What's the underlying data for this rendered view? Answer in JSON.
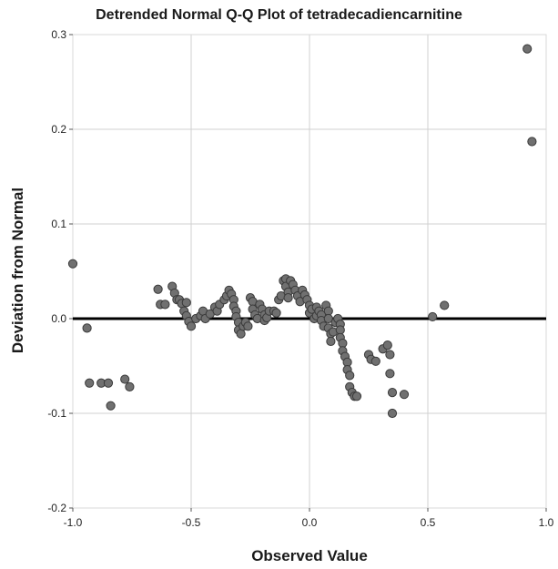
{
  "chart_data": {
    "type": "scatter",
    "title": "Detrended Normal Q-Q Plot of tetradecadiencarnitine",
    "xlabel": "Observed Value",
    "ylabel": "Deviation from Normal",
    "xlim": [
      -1.0,
      1.0
    ],
    "ylim": [
      -0.2,
      0.3
    ],
    "xticks": [
      -1.0,
      -0.5,
      0.0,
      0.5,
      1.0
    ],
    "xtick_labels": [
      "-1.0",
      "-0.5",
      "0.0",
      "0.5",
      "1.0"
    ],
    "yticks": [
      -0.2,
      -0.1,
      0.0,
      0.1,
      0.2,
      0.3
    ],
    "ytick_labels": [
      "-0.2",
      "-0.1",
      "0.0",
      "0.1",
      "0.2",
      "0.3"
    ],
    "grid": true,
    "reference_line": 0.0,
    "colors": {
      "point_fill": "#707070",
      "point_stroke": "#3a3a3a",
      "grid": "#d0d0d0",
      "reference": "#000000"
    },
    "points": [
      [
        -1.0,
        0.058
      ],
      [
        -0.94,
        -0.01
      ],
      [
        -0.93,
        -0.068
      ],
      [
        -0.88,
        -0.068
      ],
      [
        -0.85,
        -0.068
      ],
      [
        -0.84,
        -0.092
      ],
      [
        -0.78,
        -0.064
      ],
      [
        -0.76,
        -0.072
      ],
      [
        -0.64,
        0.031
      ],
      [
        -0.63,
        0.015
      ],
      [
        -0.61,
        0.015
      ],
      [
        -0.58,
        0.034
      ],
      [
        -0.57,
        0.027
      ],
      [
        -0.56,
        0.02
      ],
      [
        -0.55,
        0.02
      ],
      [
        -0.54,
        0.016
      ],
      [
        -0.53,
        0.008
      ],
      [
        -0.52,
        0.017
      ],
      [
        -0.52,
        0.003
      ],
      [
        -0.51,
        -0.003
      ],
      [
        -0.5,
        -0.008
      ],
      [
        -0.48,
        0.0
      ],
      [
        -0.46,
        0.003
      ],
      [
        -0.45,
        0.008
      ],
      [
        -0.44,
        0.0
      ],
      [
        -0.42,
        0.005
      ],
      [
        -0.4,
        0.012
      ],
      [
        -0.39,
        0.008
      ],
      [
        -0.38,
        0.015
      ],
      [
        -0.36,
        0.02
      ],
      [
        -0.35,
        0.024
      ],
      [
        -0.34,
        0.03
      ],
      [
        -0.33,
        0.026
      ],
      [
        -0.32,
        0.02
      ],
      [
        -0.32,
        0.013
      ],
      [
        -0.31,
        0.008
      ],
      [
        -0.31,
        0.002
      ],
      [
        -0.3,
        -0.004
      ],
      [
        -0.3,
        -0.012
      ],
      [
        -0.29,
        -0.016
      ],
      [
        -0.28,
        -0.008
      ],
      [
        -0.27,
        -0.004
      ],
      [
        -0.26,
        -0.008
      ],
      [
        -0.25,
        0.022
      ],
      [
        -0.24,
        0.018
      ],
      [
        -0.24,
        0.01
      ],
      [
        -0.23,
        0.004
      ],
      [
        -0.22,
        0.0
      ],
      [
        -0.21,
        0.015
      ],
      [
        -0.2,
        0.01
      ],
      [
        -0.19,
        0.004
      ],
      [
        -0.19,
        -0.002
      ],
      [
        -0.18,
        0.001
      ],
      [
        -0.17,
        0.008
      ],
      [
        -0.15,
        0.008
      ],
      [
        -0.14,
        0.006
      ],
      [
        -0.13,
        0.02
      ],
      [
        -0.12,
        0.024
      ],
      [
        -0.11,
        0.04
      ],
      [
        -0.1,
        0.042
      ],
      [
        -0.1,
        0.034
      ],
      [
        -0.09,
        0.028
      ],
      [
        -0.09,
        0.022
      ],
      [
        -0.08,
        0.04
      ],
      [
        -0.07,
        0.036
      ],
      [
        -0.06,
        0.03
      ],
      [
        -0.05,
        0.024
      ],
      [
        -0.04,
        0.018
      ],
      [
        -0.03,
        0.03
      ],
      [
        -0.02,
        0.025
      ],
      [
        -0.01,
        0.02
      ],
      [
        0.0,
        0.014
      ],
      [
        0.0,
        0.006
      ],
      [
        0.01,
        0.01
      ],
      [
        0.02,
        0.0
      ],
      [
        0.03,
        0.003
      ],
      [
        0.03,
        0.012
      ],
      [
        0.04,
        0.008
      ],
      [
        0.05,
        0.004
      ],
      [
        0.05,
        -0.002
      ],
      [
        0.06,
        -0.008
      ],
      [
        0.07,
        0.014
      ],
      [
        0.08,
        0.008
      ],
      [
        0.08,
        0.0
      ],
      [
        0.08,
        -0.01
      ],
      [
        0.09,
        -0.016
      ],
      [
        0.09,
        -0.024
      ],
      [
        0.1,
        -0.014
      ],
      [
        0.11,
        -0.004
      ],
      [
        0.12,
        0.0
      ],
      [
        0.13,
        -0.006
      ],
      [
        0.13,
        -0.012
      ],
      [
        0.13,
        -0.02
      ],
      [
        0.14,
        -0.026
      ],
      [
        0.14,
        -0.034
      ],
      [
        0.15,
        -0.04
      ],
      [
        0.16,
        -0.046
      ],
      [
        0.16,
        -0.054
      ],
      [
        0.17,
        -0.06
      ],
      [
        0.17,
        -0.072
      ],
      [
        0.18,
        -0.078
      ],
      [
        0.19,
        -0.082
      ],
      [
        0.2,
        -0.082
      ],
      [
        0.25,
        -0.038
      ],
      [
        0.26,
        -0.043
      ],
      [
        0.28,
        -0.045
      ],
      [
        0.31,
        -0.032
      ],
      [
        0.33,
        -0.028
      ],
      [
        0.34,
        -0.038
      ],
      [
        0.34,
        -0.058
      ],
      [
        0.35,
        -0.078
      ],
      [
        0.35,
        -0.1
      ],
      [
        0.4,
        -0.08
      ],
      [
        0.52,
        0.002
      ],
      [
        0.57,
        0.014
      ],
      [
        0.92,
        0.285
      ],
      [
        0.94,
        0.187
      ]
    ]
  }
}
